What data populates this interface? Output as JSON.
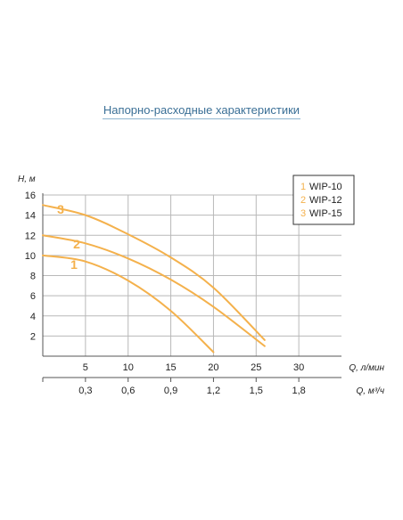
{
  "chart_data": {
    "type": "line",
    "title": "Напорно-расходные характеристики",
    "ylabel": "H, м",
    "xlabel": "Q, л/мин",
    "x2label": "Q, м³/ч",
    "xlim": [
      0,
      35
    ],
    "ylim": [
      0,
      16
    ],
    "y_ticks": [
      "2",
      "4",
      "6",
      "8",
      "10",
      "12",
      "14",
      "16"
    ],
    "x_ticks": [
      "5",
      "10",
      "15",
      "20",
      "25",
      "30"
    ],
    "x2_ticks": [
      "0,3",
      "0,6",
      "0,9",
      "1,2",
      "1,5",
      "1,8"
    ],
    "grid": true,
    "legend_position": "top-right",
    "series": [
      {
        "name": "WIP-10",
        "label": "1",
        "x": [
          0,
          5,
          10,
          15,
          20
        ],
        "y": [
          10.0,
          9.4,
          7.5,
          4.5,
          0.4
        ]
      },
      {
        "name": "WIP-12",
        "label": "2",
        "x": [
          0,
          5,
          10,
          15,
          20,
          26
        ],
        "y": [
          12.0,
          11.2,
          9.7,
          7.6,
          4.9,
          1.0
        ]
      },
      {
        "name": "WIP-15",
        "label": "3",
        "x": [
          0,
          5,
          10,
          15,
          20,
          26
        ],
        "y": [
          15.0,
          14.0,
          12.1,
          9.8,
          6.8,
          1.6
        ]
      }
    ],
    "colors": {
      "curve": "#f4b14c",
      "grid": "#b8b8b8",
      "axis": "#555555"
    }
  }
}
